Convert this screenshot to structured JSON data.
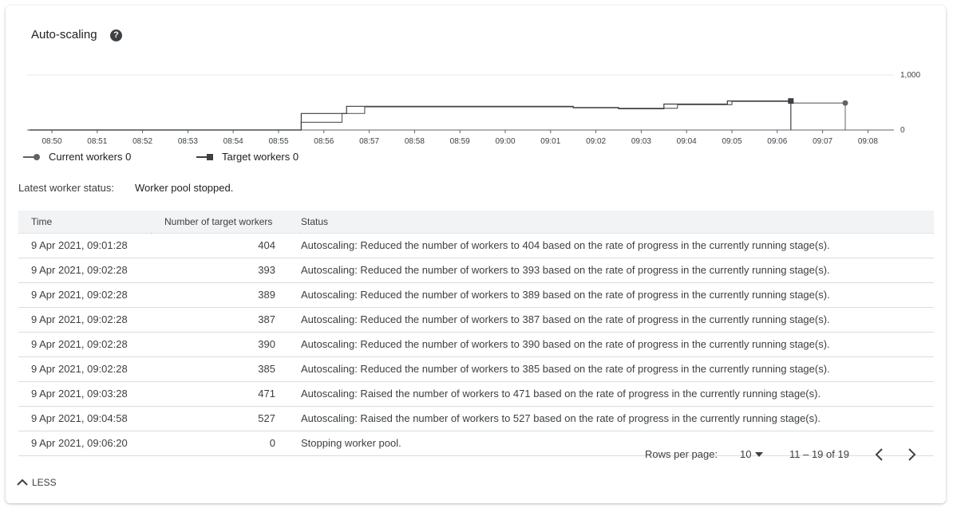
{
  "header": {
    "title": "Auto-scaling",
    "help_icon": "help-circle-icon"
  },
  "chart_data": {
    "type": "line",
    "x_ticks": [
      "08:50",
      "08:51",
      "08:52",
      "08:53",
      "08:54",
      "08:55",
      "08:56",
      "08:57",
      "08:58",
      "08:59",
      "09:00",
      "09:01",
      "09:02",
      "09:03",
      "09:04",
      "09:05",
      "09:06",
      "09:07",
      "09:08"
    ],
    "y_ticks": [
      "1,000",
      "0"
    ],
    "ylim": [
      0,
      1000
    ],
    "step": true,
    "series": [
      {
        "name": "Current workers",
        "marker": "circle",
        "color": "#5f6368",
        "points": [
          [
            "08:49.5",
            0
          ],
          [
            "08:55.5",
            0
          ],
          [
            "08:55.5",
            140
          ],
          [
            "08:56.4",
            140
          ],
          [
            "08:56.4",
            300
          ],
          [
            "08:56.9",
            300
          ],
          [
            "08:56.9",
            420
          ],
          [
            "09:01.5",
            420
          ],
          [
            "09:01.5",
            410
          ],
          [
            "09:02.5",
            410
          ],
          [
            "09:02.5",
            395
          ],
          [
            "09:03.8",
            395
          ],
          [
            "09:03.8",
            460
          ],
          [
            "09:05.0",
            460
          ],
          [
            "09:05.0",
            520
          ],
          [
            "09:06.3",
            520
          ],
          [
            "09:06.3",
            490
          ],
          [
            "09:07.5",
            490
          ]
        ]
      },
      {
        "name": "Target workers",
        "marker": "square",
        "color": "#3c4043",
        "points": [
          [
            "08:49.5",
            0
          ],
          [
            "08:55.5",
            0
          ],
          [
            "08:55.5",
            300
          ],
          [
            "08:56.5",
            300
          ],
          [
            "08:56.5",
            430
          ],
          [
            "09:01.5",
            430
          ],
          [
            "09:01.5",
            404
          ],
          [
            "09:02.5",
            404
          ],
          [
            "09:02.5",
            385
          ],
          [
            "09:03.5",
            385
          ],
          [
            "09:03.5",
            471
          ],
          [
            "09:04.9",
            471
          ],
          [
            "09:04.9",
            527
          ],
          [
            "09:06.3",
            527
          ],
          [
            "09:06.3",
            0
          ]
        ]
      }
    ]
  },
  "legend": {
    "current_label": "Current workers",
    "current_value": "0",
    "target_label": "Target workers",
    "target_value": "0"
  },
  "status": {
    "label": "Latest worker status:",
    "value": "Worker pool stopped."
  },
  "table": {
    "columns": [
      "Time",
      "Number of target workers",
      "Status"
    ],
    "rows": [
      [
        "9 Apr 2021, 09:01:28",
        "404",
        "Autoscaling: Reduced the number of workers to 404 based on the rate of progress in the currently running stage(s)."
      ],
      [
        "9 Apr 2021, 09:02:28",
        "393",
        "Autoscaling: Reduced the number of workers to 393 based on the rate of progress in the currently running stage(s)."
      ],
      [
        "9 Apr 2021, 09:02:28",
        "389",
        "Autoscaling: Reduced the number of workers to 389 based on the rate of progress in the currently running stage(s)."
      ],
      [
        "9 Apr 2021, 09:02:28",
        "387",
        "Autoscaling: Reduced the number of workers to 387 based on the rate of progress in the currently running stage(s)."
      ],
      [
        "9 Apr 2021, 09:02:28",
        "390",
        "Autoscaling: Reduced the number of workers to 390 based on the rate of progress in the currently running stage(s)."
      ],
      [
        "9 Apr 2021, 09:02:28",
        "385",
        "Autoscaling: Reduced the number of workers to 385 based on the rate of progress in the currently running stage(s)."
      ],
      [
        "9 Apr 2021, 09:03:28",
        "471",
        "Autoscaling: Raised the number of workers to 471 based on the rate of progress in the currently running stage(s)."
      ],
      [
        "9 Apr 2021, 09:04:58",
        "527",
        "Autoscaling: Raised the number of workers to 527 based on the rate of progress in the currently running stage(s)."
      ],
      [
        "9 Apr 2021, 09:06:20",
        "0",
        "Stopping worker pool."
      ]
    ]
  },
  "pagination": {
    "rows_label": "Rows per page:",
    "rows_value": "10",
    "range": "11 – 19 of 19"
  },
  "footer": {
    "less_label": "LESS"
  }
}
